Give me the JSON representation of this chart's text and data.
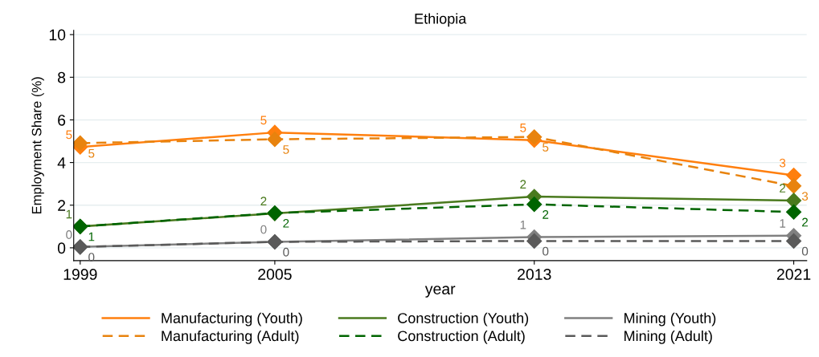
{
  "chart_data": {
    "type": "line",
    "title": "Ethiopia",
    "xlabel": "year",
    "ylabel": "Employment Share (%)",
    "x": [
      1999,
      2005,
      2013,
      2021
    ],
    "xlim": [
      1998.8,
      2021.4
    ],
    "xticks": [
      1999,
      2005,
      2013,
      2021
    ],
    "ylim": [
      -0.6,
      10.2
    ],
    "yticks": [
      0,
      2,
      4,
      6,
      8,
      10
    ],
    "grid": "y",
    "legend": "bottom",
    "marker": "diamond",
    "series": [
      {
        "name": "Manufacturing (Youth)",
        "color": "#ff7f0e",
        "line_style": "solid",
        "values": [
          4.73,
          5.41,
          5.05,
          3.4
        ],
        "value_labels": [
          "5",
          "5",
          "5",
          "3"
        ]
      },
      {
        "name": "Manufacturing (Adult)",
        "color": "#e8830e",
        "line_style": "dashed",
        "values": [
          4.91,
          5.09,
          5.2,
          2.9
        ],
        "value_labels": [
          "5",
          "5",
          "5",
          "3"
        ]
      },
      {
        "name": "Construction (Youth)",
        "color": "#4a7a1e",
        "line_style": "solid",
        "values": [
          1.0,
          1.61,
          2.4,
          2.22
        ],
        "value_labels": [
          "1",
          "2",
          "2",
          "2"
        ]
      },
      {
        "name": "Construction (Adult)",
        "color": "#006400",
        "line_style": "dashed",
        "values": [
          1.0,
          1.63,
          2.04,
          1.68
        ],
        "value_labels": [
          "1",
          "2",
          "2",
          "2"
        ]
      },
      {
        "name": "Mining (Youth)",
        "color": "#808080",
        "line_style": "solid",
        "values": [
          0.04,
          0.28,
          0.5,
          0.57
        ],
        "value_labels": [
          "0",
          "0",
          "1",
          "1"
        ]
      },
      {
        "name": "Mining (Adult)",
        "color": "#5a5a5a",
        "line_style": "dashed",
        "values": [
          0.04,
          0.28,
          0.32,
          0.32
        ],
        "value_labels": [
          "0",
          "0",
          "0",
          "0"
        ]
      }
    ]
  }
}
